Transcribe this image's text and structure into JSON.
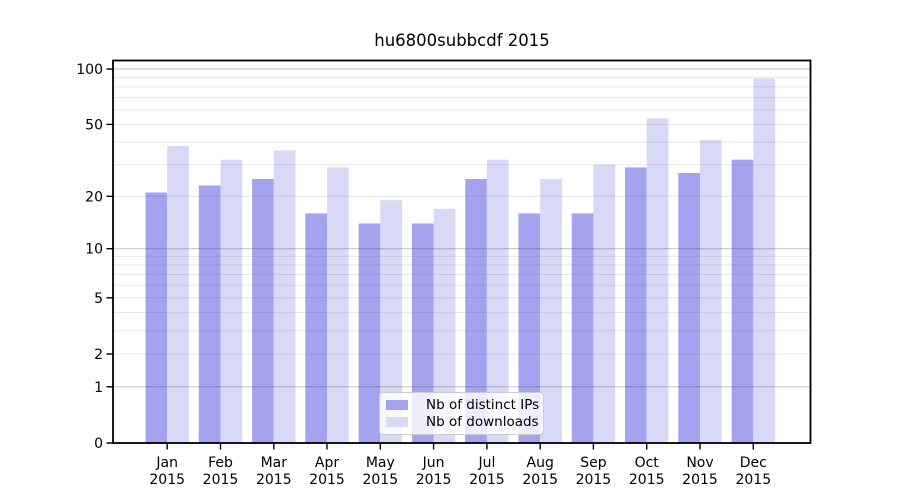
{
  "chart_data": {
    "type": "bar",
    "title": "hu6800subbcdf 2015",
    "categories": [
      "Jan",
      "Feb",
      "Mar",
      "Apr",
      "May",
      "Jun",
      "Jul",
      "Aug",
      "Sep",
      "Oct",
      "Nov",
      "Dec"
    ],
    "category_year": "2015",
    "series": [
      {
        "name": "Nb of distinct IPs",
        "color": "#a3a3f0",
        "values": [
          21,
          23,
          25,
          16,
          14,
          14,
          25,
          16,
          16,
          29,
          27,
          32
        ]
      },
      {
        "name": "Nb of downloads",
        "color": "#d8d8f7",
        "values": [
          38,
          32,
          36,
          29,
          19,
          17,
          32,
          25,
          30,
          54,
          41,
          89
        ]
      }
    ],
    "yscale": "log1p",
    "ylim": [
      0,
      111
    ],
    "yticks": [
      0,
      1,
      2,
      5,
      10,
      20,
      50,
      100
    ],
    "major_gridlines": [
      1,
      10,
      100
    ],
    "minor_gridlines": [
      2,
      3,
      4,
      5,
      6,
      7,
      8,
      9,
      20,
      30,
      40,
      50,
      60,
      70,
      80,
      90
    ],
    "grid": true,
    "legend_position": "lower center"
  }
}
